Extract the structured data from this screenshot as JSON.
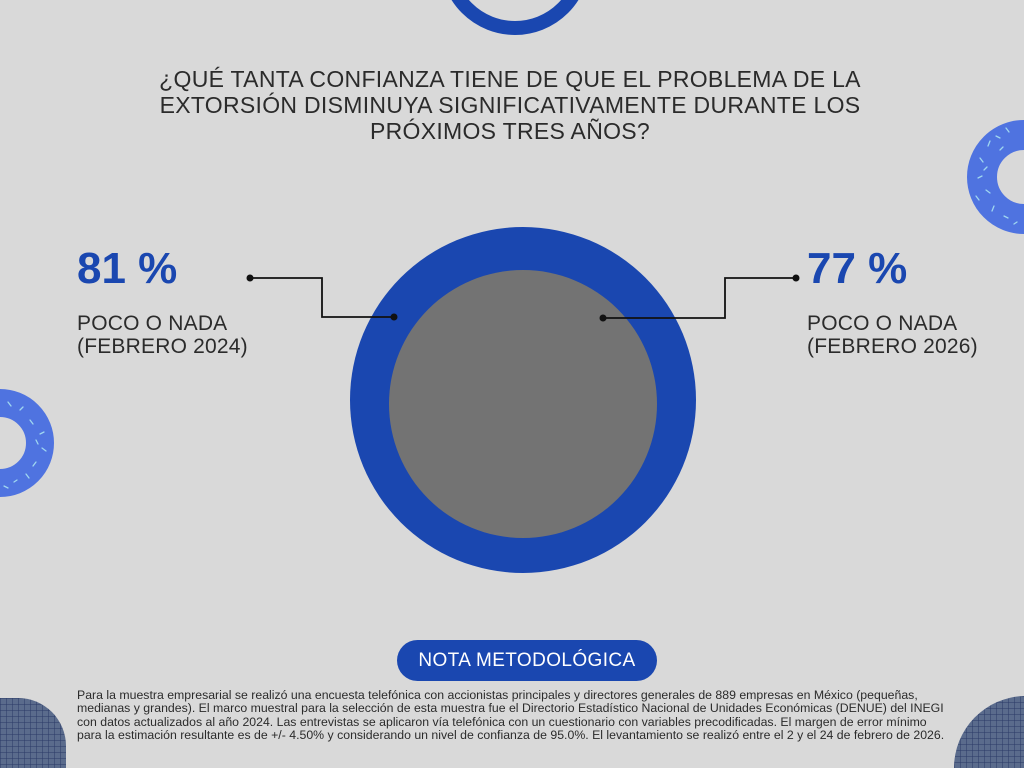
{
  "question": "¿QUÉ TANTA CONFIANZA TIENE DE QUE EL PROBLEMA DE LA EXTORSIÓN DISMINUYA SIGNIFICATIVAMENTE DURANTE LOS PRÓXIMOS TRES AÑOS?",
  "chart_data": {
    "type": "pie",
    "series": [
      {
        "value_label": "81 %",
        "value": 81,
        "label_line1": "POCO O NADA",
        "label_line2": "(FEBRERO 2024)"
      },
      {
        "value_label": "77 %",
        "value": 77,
        "label_line1": "POCO O NADA",
        "label_line2": "(FEBRERO 2026)"
      }
    ]
  },
  "colors": {
    "background": "#d9d9d9",
    "accent_blue": "#1a47b0",
    "inner_circle": "#737373",
    "pattern_blue": "#4f73e0",
    "text": "#2b2b2b"
  },
  "nota": {
    "button_label": "NOTA METODOLÓGICA",
    "text": "Para la muestra empresarial se realizó una encuesta telefónica con accionistas principales y directores generales de 889 empresas en México (pequeñas, medianas y grandes). El marco muestral para la selección de esta muestra fue el Directorio Estadístico Nacional de Unidades Económicas (DENUE) del INEGI con datos actualizados al año 2024. Las entrevistas se aplicaron vía telefónica con un cuestionario con variables precodificadas. El margen de error mínimo para la estimación resultante es de +/- 4.50% y considerando un nivel de confianza de 95.0%. El levantamiento se realizó entre el 2 y el 24 de febrero de 2026."
  }
}
